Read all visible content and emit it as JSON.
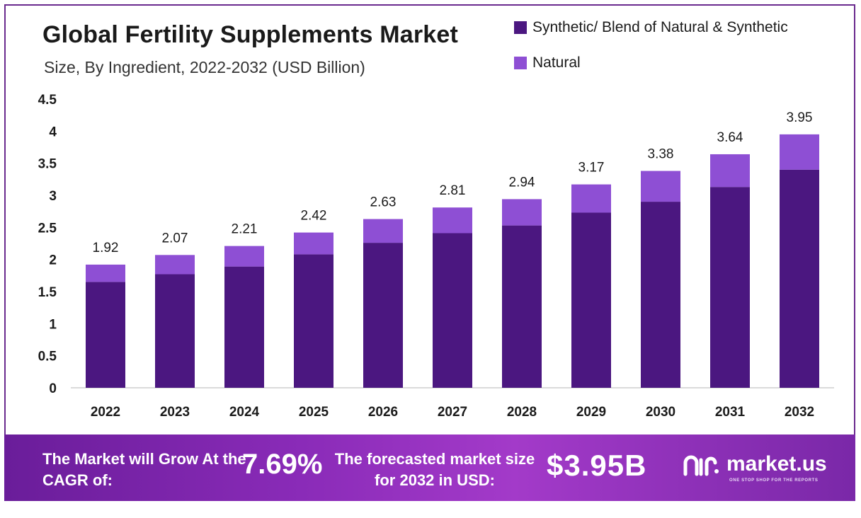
{
  "header": {
    "title": "Global Fertility Supplements Market",
    "subtitle": "Size, By Ingredient, 2022-2032 (USD Billion)"
  },
  "legend": [
    {
      "label": "Synthetic/ Blend of Natural & Synthetic",
      "color": "#4b1780"
    },
    {
      "label": "Natural",
      "color": "#8e4fd4"
    }
  ],
  "chart_data": {
    "type": "bar",
    "stacked": true,
    "title": "Global Fertility Supplements Market",
    "subtitle": "Size, By Ingredient, 2022-2032 (USD Billion)",
    "categories": [
      "2022",
      "2023",
      "2024",
      "2025",
      "2026",
      "2027",
      "2028",
      "2029",
      "2030",
      "2031",
      "2032"
    ],
    "series": [
      {
        "name": "Synthetic/ Blend of Natural & Synthetic",
        "color": "#4b1780",
        "values": [
          1.65,
          1.77,
          1.89,
          2.08,
          2.26,
          2.41,
          2.53,
          2.73,
          2.9,
          3.13,
          3.4
        ]
      },
      {
        "name": "Natural",
        "color": "#8e4fd4",
        "values": [
          0.27,
          0.3,
          0.32,
          0.34,
          0.37,
          0.4,
          0.41,
          0.44,
          0.48,
          0.51,
          0.55
        ]
      }
    ],
    "totals": [
      1.92,
      2.07,
      2.21,
      2.42,
      2.63,
      2.81,
      2.94,
      3.17,
      3.38,
      3.64,
      3.95
    ],
    "total_labels": [
      "1.92",
      "2.07",
      "2.21",
      "2.42",
      "2.63",
      "2.81",
      "2.94",
      "3.17",
      "3.38",
      "3.64",
      "3.95"
    ],
    "yticks": [
      "0",
      "0.5",
      "1",
      "1.5",
      "2",
      "2.5",
      "3",
      "3.5",
      "4",
      "4.5"
    ],
    "ytick_values": [
      0,
      0.5,
      1,
      1.5,
      2,
      2.5,
      3,
      3.5,
      4,
      4.5
    ],
    "ylim": [
      0,
      4.5
    ],
    "xlabel": "",
    "ylabel": "",
    "grid": false,
    "legend_position": "top-right"
  },
  "footer": {
    "cagr_label": "The Market will Grow At the CAGR of:",
    "cagr_value": "7.69%",
    "forecast_label": "The forecasted market size for 2032 in USD:",
    "forecast_value": "$3.95B",
    "brand_name": "market.us",
    "brand_tagline": "ONE STOP SHOP FOR THE REPORTS",
    "gradient_colors": [
      "#6a1d9a",
      "#a33ac9"
    ]
  }
}
